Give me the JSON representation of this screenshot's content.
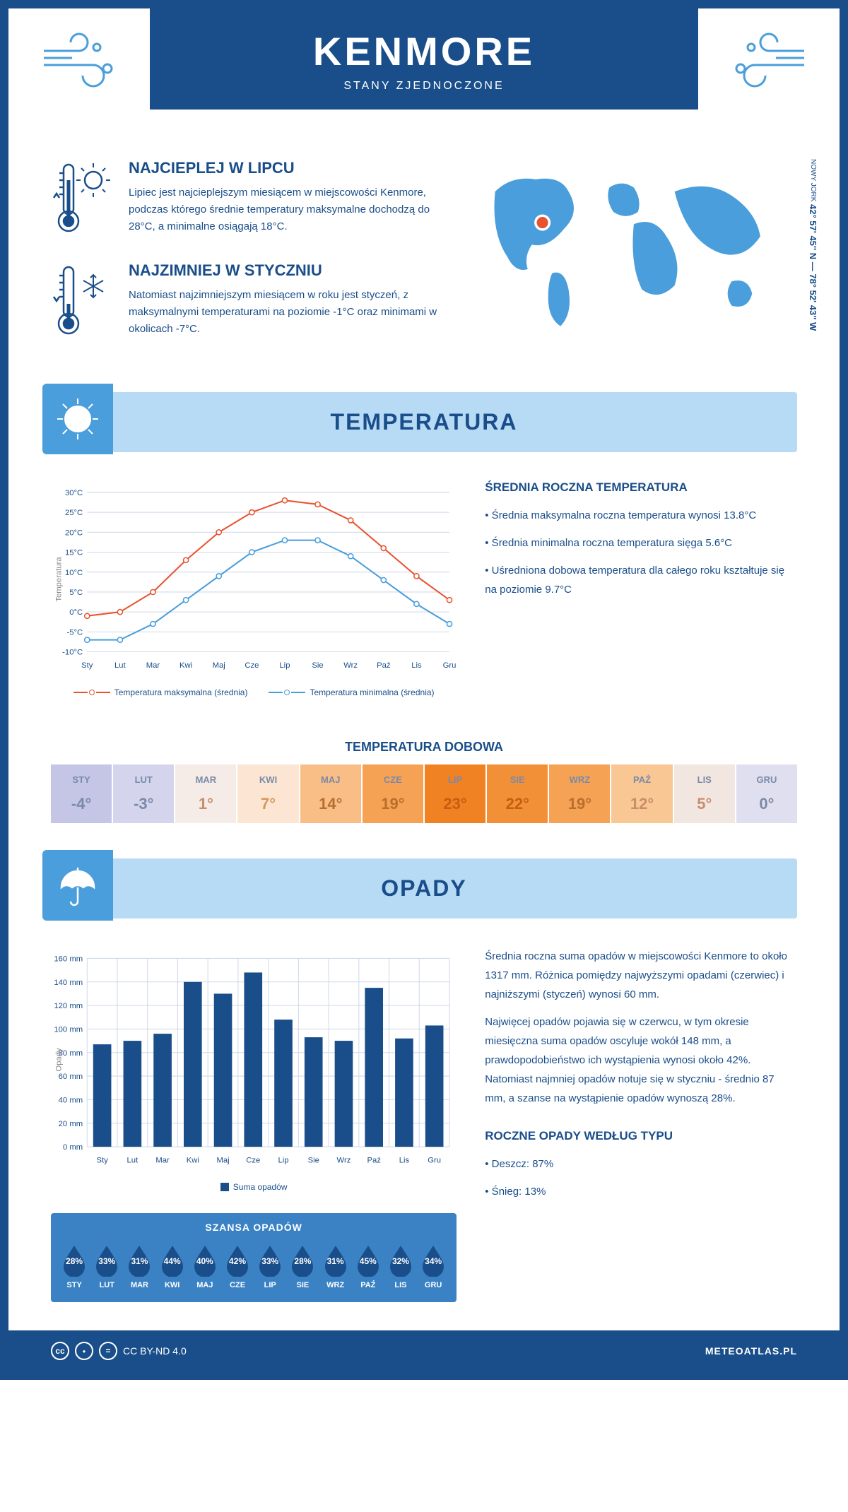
{
  "header": {
    "city": "KENMORE",
    "country": "STANY ZJEDNOCZONE",
    "coords": "42° 57' 45'' N — 78° 52' 43'' W",
    "region": "NOWY JORK"
  },
  "warm": {
    "title": "NAJCIEPLEJ W LIPCU",
    "text": "Lipiec jest najcieplejszym miesiącem w miejscowości Kenmore, podczas którego średnie temperatury maksymalne dochodzą do 28°C, a minimalne osiągają 18°C."
  },
  "cold": {
    "title": "NAJZIMNIEJ W STYCZNIU",
    "text": "Natomiast najzimniejszym miesiącem w roku jest styczeń, z maksymalnymi temperaturami na poziomie -1°C oraz minimami w okolicach -7°C."
  },
  "temp_section": {
    "title": "TEMPERATURA",
    "annual_title": "ŚREDNIA ROCZNA TEMPERATURA",
    "bullets": [
      "• Średnia maksymalna roczna temperatura wynosi 13.8°C",
      "• Średnia minimalna roczna temperatura sięga 5.6°C",
      "• Uśredniona dobowa temperatura dla całego roku kształtuje się na poziomie 9.7°C"
    ],
    "chart": {
      "months": [
        "Sty",
        "Lut",
        "Mar",
        "Kwi",
        "Maj",
        "Cze",
        "Lip",
        "Sie",
        "Wrz",
        "Paź",
        "Lis",
        "Gru"
      ],
      "max": [
        -1,
        0,
        5,
        13,
        20,
        25,
        28,
        27,
        23,
        16,
        9,
        3
      ],
      "min": [
        -7,
        -7,
        -3,
        3,
        9,
        15,
        18,
        18,
        14,
        8,
        2,
        -3
      ],
      "ylim": [
        -10,
        30
      ],
      "ystep": 5,
      "ylabel": "Temperatura",
      "max_color": "#e8532f",
      "min_color": "#4a9edb",
      "grid_color": "#d0d8e8",
      "legend_max": "Temperatura maksymalna (średnia)",
      "legend_min": "Temperatura minimalna (średnia)"
    },
    "daily_title": "TEMPERATURA DOBOWA",
    "daily": {
      "months": [
        "STY",
        "LUT",
        "MAR",
        "KWI",
        "MAJ",
        "CZE",
        "LIP",
        "SIE",
        "WRZ",
        "PAŹ",
        "LIS",
        "GRU"
      ],
      "values": [
        "-4°",
        "-3°",
        "1°",
        "7°",
        "14°",
        "19°",
        "23°",
        "22°",
        "19°",
        "12°",
        "5°",
        "0°"
      ],
      "bg_colors": [
        "#c5c5e6",
        "#d4d4ec",
        "#f5ece8",
        "#fce6d3",
        "#f9be85",
        "#f6a255",
        "#f08224",
        "#f29038",
        "#f6a255",
        "#f9c793",
        "#f2e6e0",
        "#e0dff0"
      ],
      "text_colors": [
        "#7a8aa8",
        "#7a8aa8",
        "#c98d6a",
        "#d6975d",
        "#b86f2e",
        "#b86f2e",
        "#c65d12",
        "#c65d12",
        "#b86f2e",
        "#c98d6a",
        "#c98d6a",
        "#7a8aa8"
      ]
    }
  },
  "rain_section": {
    "title": "OPADY",
    "p1": "Średnia roczna suma opadów w miejscowości Kenmore to około 1317 mm. Różnica pomiędzy najwyższymi opadami (czerwiec) i najniższymi (styczeń) wynosi 60 mm.",
    "p2": "Najwięcej opadów pojawia się w czerwcu, w tym okresie miesięczna suma opadów oscyluje wokół 148 mm, a prawdopodobieństwo ich wystąpienia wynosi około 42%. Natomiast najmniej opadów notuje się w styczniu - średnio 87 mm, a szanse na wystąpienie opadów wynoszą 28%.",
    "chart": {
      "months": [
        "Sty",
        "Lut",
        "Mar",
        "Kwi",
        "Maj",
        "Cze",
        "Lip",
        "Sie",
        "Wrz",
        "Paź",
        "Lis",
        "Gru"
      ],
      "values": [
        87,
        90,
        96,
        140,
        130,
        148,
        108,
        93,
        90,
        135,
        92,
        103
      ],
      "ylim": [
        0,
        160
      ],
      "ystep": 20,
      "ylabel": "Opady",
      "bar_color": "#1a4e8a",
      "legend": "Suma opadów"
    },
    "chance_title": "SZANSA OPADÓW",
    "chance": {
      "months": [
        "STY",
        "LUT",
        "MAR",
        "KWI",
        "MAJ",
        "CZE",
        "LIP",
        "SIE",
        "WRZ",
        "PAŹ",
        "LIS",
        "GRU"
      ],
      "values": [
        "28%",
        "33%",
        "31%",
        "44%",
        "40%",
        "42%",
        "33%",
        "28%",
        "31%",
        "45%",
        "32%",
        "34%"
      ],
      "drop_color": "#1a4e8a"
    },
    "type_title": "ROCZNE OPADY WEDŁUG TYPU",
    "types": [
      "• Deszcz: 87%",
      "• Śnieg: 13%"
    ]
  },
  "footer": {
    "license": "CC BY-ND 4.0",
    "site": "METEOATLAS.PL"
  },
  "colors": {
    "primary": "#1a4e8a",
    "light_blue": "#b7daf5",
    "mid_blue": "#4a9edb"
  }
}
